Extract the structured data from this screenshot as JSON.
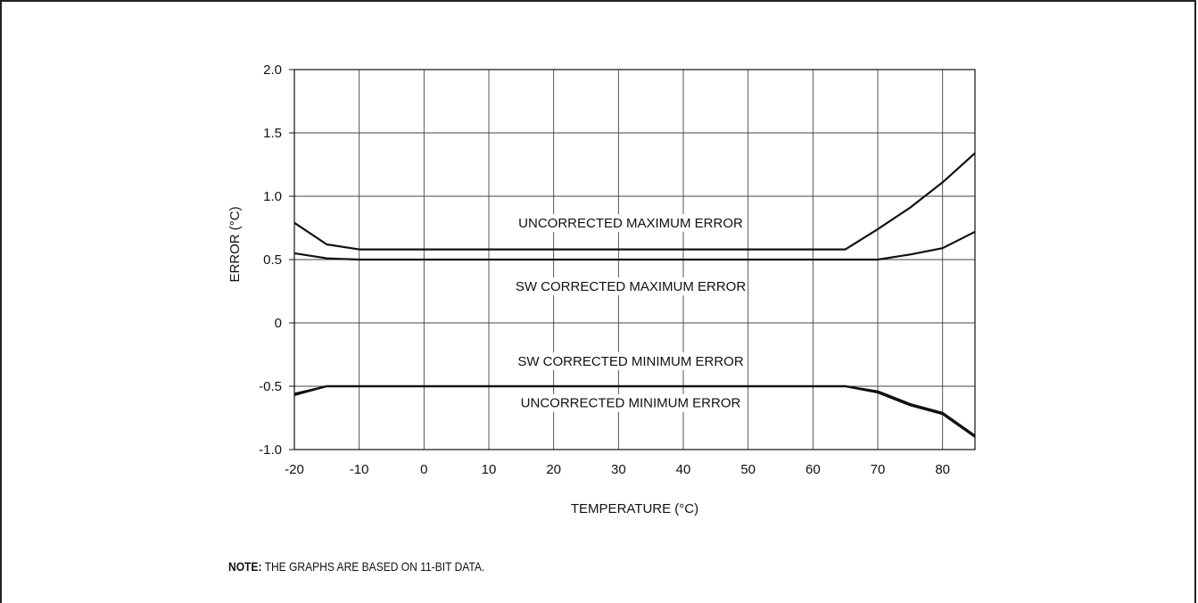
{
  "note": {
    "label": "NOTE:",
    "text": "THE GRAPHS ARE BASED ON 11-BIT DATA."
  },
  "chart_data": {
    "type": "line",
    "title": "",
    "xlabel": "TEMPERATURE (°C)",
    "ylabel": "ERROR (°C)",
    "xlim": [
      -20,
      85
    ],
    "ylim": [
      -1.0,
      2.0
    ],
    "xticks": [
      -20,
      -10,
      0,
      10,
      20,
      30,
      40,
      50,
      60,
      70,
      80
    ],
    "xtick_labels": [
      "-20",
      "-10",
      "0",
      "10",
      "20",
      "30",
      "40",
      "50",
      "60",
      "70",
      "80"
    ],
    "yticks": [
      2.0,
      1.5,
      1.0,
      0.5,
      0,
      -0.5,
      -1.0
    ],
    "ytick_labels": [
      "2.0",
      "1.5",
      "1.0",
      "0.5",
      "0",
      "-0.5",
      "-1.0"
    ],
    "grid": true,
    "legend": "none",
    "line_color": "#111111",
    "series": [
      {
        "name": "UNCORRECTED MAXIMUM ERROR",
        "x": [
          -20,
          -15,
          -10,
          0,
          10,
          20,
          30,
          40,
          50,
          60,
          65,
          70,
          75,
          80,
          85
        ],
        "y": [
          0.79,
          0.62,
          0.58,
          0.58,
          0.58,
          0.58,
          0.58,
          0.58,
          0.58,
          0.58,
          0.58,
          0.74,
          0.91,
          1.11,
          1.34
        ]
      },
      {
        "name": "SW CORRECTED MAXIMUM ERROR",
        "x": [
          -20,
          -15,
          -10,
          0,
          10,
          20,
          30,
          40,
          50,
          60,
          65,
          70,
          75,
          80,
          85
        ],
        "y": [
          0.55,
          0.51,
          0.5,
          0.5,
          0.5,
          0.5,
          0.5,
          0.5,
          0.5,
          0.5,
          0.5,
          0.5,
          0.54,
          0.59,
          0.72
        ]
      },
      {
        "name": "SW CORRECTED MINIMUM ERROR",
        "x": [
          -20,
          -15,
          -10,
          0,
          10,
          20,
          30,
          40,
          50,
          60,
          65,
          70,
          75,
          80,
          85
        ],
        "y": [
          -0.57,
          -0.5,
          -0.5,
          -0.5,
          -0.5,
          -0.5,
          -0.5,
          -0.5,
          -0.5,
          -0.5,
          -0.5,
          -0.54,
          -0.64,
          -0.71,
          -0.89
        ]
      },
      {
        "name": "UNCORRECTED MINIMUM ERROR",
        "x": [
          -20,
          -15,
          -10,
          0,
          10,
          20,
          30,
          40,
          50,
          60,
          65,
          70,
          75,
          80,
          85
        ],
        "y": [
          -0.56,
          -0.5,
          -0.5,
          -0.5,
          -0.5,
          -0.5,
          -0.5,
          -0.5,
          -0.5,
          -0.5,
          -0.5,
          -0.55,
          -0.65,
          -0.72,
          -0.9
        ]
      }
    ]
  }
}
